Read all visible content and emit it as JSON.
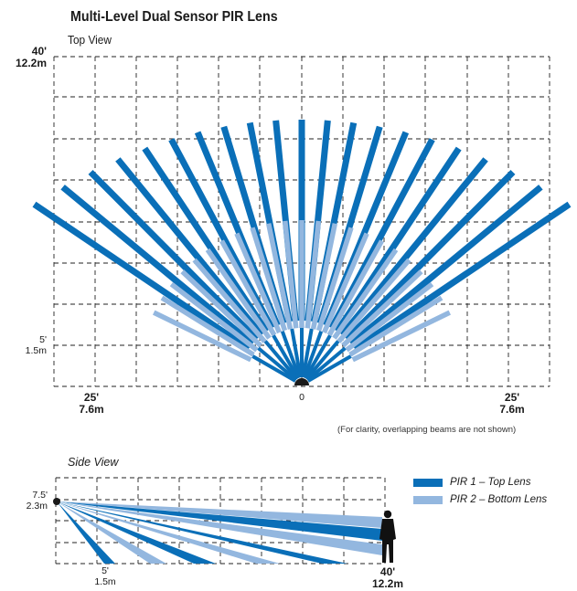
{
  "title": "Multi-Level Dual Sensor PIR Lens",
  "top_view": {
    "label": "Top View",
    "y_top_ft": "40'",
    "y_top_m": "12.2m",
    "y_mid_ft": "5'",
    "y_mid_m": "1.5m",
    "x_left_ft": "25'",
    "x_left_m": "7.6m",
    "x_center": "0",
    "x_right_ft": "25'",
    "x_right_m": "7.6m",
    "note": "(For clarity, overlapping beams are not shown)"
  },
  "side_view": {
    "label": "Side View",
    "y_ft": "7.5'",
    "y_m": "2.3m",
    "x_mid_ft": "5'",
    "x_mid_m": "1.5m",
    "x_end_ft": "40'",
    "x_end_m": "12.2m"
  },
  "legend": [
    {
      "label": "PIR 1 – Top Lens",
      "color": "#0a6fb8"
    },
    {
      "label": "PIR 2 – Bottom Lens",
      "color": "#93b7df"
    }
  ],
  "colors": {
    "top_lens": "#0a6fb8",
    "bottom_lens": "#93b7df",
    "grid": "#222222"
  },
  "icons": {
    "person": "person-silhouette-icon",
    "sensor": "sensor-icon"
  }
}
